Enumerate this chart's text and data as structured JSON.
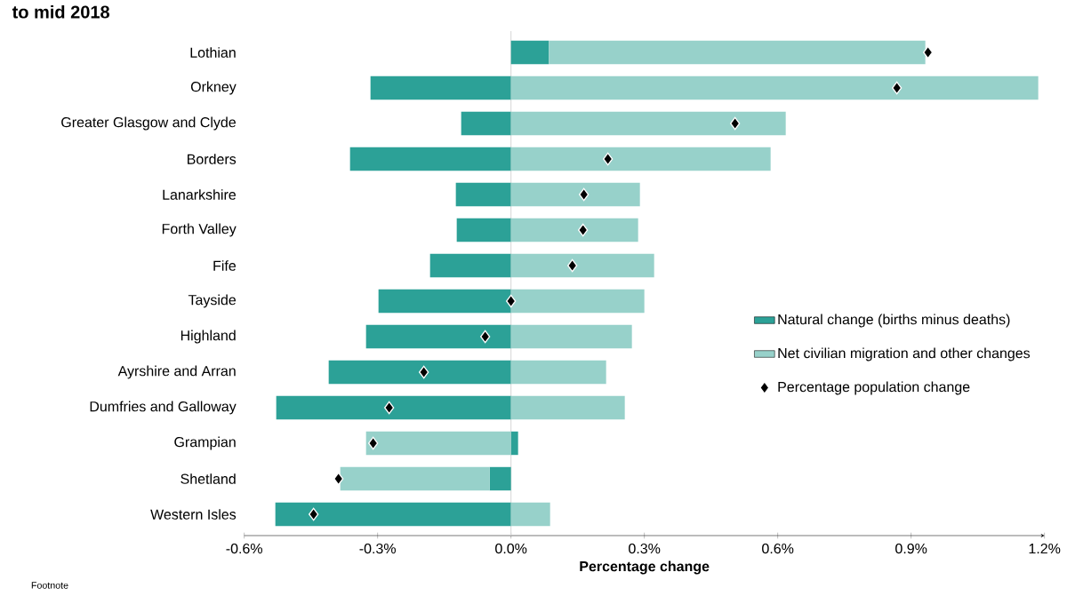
{
  "chart_data": {
    "type": "bar",
    "orientation": "horizontal",
    "stacked": true,
    "title": "to mid 2018",
    "xlabel": "Percentage change",
    "annotations": [
      "Footnote"
    ],
    "categories": [
      "Lothian",
      "Orkney",
      "Greater Glasgow and Clyde",
      "Borders",
      "Lanarkshire",
      "Forth Valley",
      "Fife",
      "Tayside",
      "Highland",
      "Ayrshire and Arran",
      "Dumfries and Galloway",
      "Grampian",
      "Shetland",
      "Western Isles"
    ],
    "series": [
      {
        "name": "Natural change (births minus deaths)",
        "color": "#2ca197",
        "values": [
          0.085,
          -0.316,
          -0.112,
          -0.362,
          -0.124,
          -0.122,
          -0.182,
          -0.298,
          -0.326,
          -0.41,
          -0.528,
          0.016,
          -0.048,
          -0.53
        ]
      },
      {
        "name": "Net civilian migration and other changes",
        "color": "#97d1ca",
        "values": [
          0.847,
          1.186,
          0.618,
          0.584,
          0.29,
          0.286,
          0.322,
          0.3,
          0.272,
          0.214,
          0.256,
          -0.326,
          -0.336,
          0.088
        ]
      },
      {
        "name": "Percentage population change",
        "type": "scatter",
        "color": "#000000",
        "values": [
          0.938,
          0.868,
          0.504,
          0.218,
          0.164,
          0.162,
          0.138,
          0.0,
          -0.058,
          -0.196,
          -0.274,
          -0.31,
          -0.388,
          -0.444
        ]
      }
    ],
    "marker": "diamond",
    "legend": "right",
    "grid": false,
    "ref_lines": [
      {
        "axis": "x",
        "value": 0,
        "color": "#d9d9d9"
      }
    ],
    "xlim": [
      -0.6,
      1.2
    ],
    "xticks": [
      {
        "value": -0.6,
        "label": "-0.6%"
      },
      {
        "value": -0.3,
        "label": "-0.3%"
      },
      {
        "value": 0.0,
        "label": "0.0%"
      },
      {
        "value": 0.3,
        "label": "0.3%"
      },
      {
        "value": 0.6,
        "label": "0.6%"
      },
      {
        "value": 0.9,
        "label": "0.9%"
      },
      {
        "value": 1.2,
        "label": "1.2%"
      }
    ]
  }
}
